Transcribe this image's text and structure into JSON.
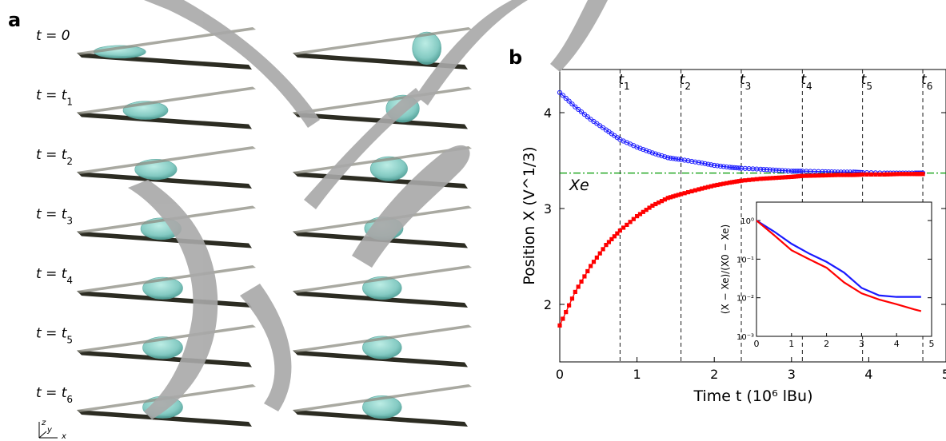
{
  "panel_a": {
    "label": "a",
    "rows": [
      {
        "t": "t = 0",
        "x_left": 0.25,
        "x_right": 0.78
      },
      {
        "t": "t = t1",
        "x_left": 0.4,
        "x_right": 0.64
      },
      {
        "t": "t = t2",
        "x_left": 0.46,
        "x_right": 0.56
      },
      {
        "t": "t = t3",
        "x_left": 0.49,
        "x_right": 0.53
      },
      {
        "t": "t = t4",
        "x_left": 0.5,
        "x_right": 0.52
      },
      {
        "t": "t = t5",
        "x_left": 0.5,
        "x_right": 0.52
      },
      {
        "t": "t = t6",
        "x_left": 0.5,
        "x_right": 0.52
      }
    ],
    "axes_glyph": {
      "z": "z",
      "y": "y",
      "x": "x"
    }
  },
  "panel_b": {
    "label": "b",
    "xe_label": "Xe"
  },
  "colors": {
    "blue": "#1a1aff",
    "red": "#ff0000",
    "green": "#009900",
    "droplet": "#7ec8c0",
    "plate": "#2c2c22",
    "watermark": "#a8a8a8"
  },
  "chart_data": [
    {
      "type": "line",
      "xlabel": "Time  t  (10⁶ lBu)",
      "ylabel": "Position X  (V^1/3)",
      "xlim": [
        0,
        5
      ],
      "ylim": [
        1.4,
        4.45
      ],
      "xticks": [
        0,
        1,
        2,
        3,
        4,
        5
      ],
      "xticklabels": [
        "0",
        "1",
        "2",
        "3",
        "4",
        "5"
      ],
      "yticks": [
        2,
        3,
        4
      ],
      "yticklabels": [
        "2",
        "3",
        "4"
      ],
      "x": [
        0,
        0.2,
        0.4,
        0.6,
        0.78,
        1.0,
        1.2,
        1.4,
        1.57,
        1.8,
        2.0,
        2.2,
        2.35,
        2.6,
        2.8,
        3.0,
        3.14,
        3.4,
        3.6,
        3.8,
        3.92,
        4.2,
        4.4,
        4.6,
        4.7
      ],
      "series": [
        {
          "name": "",
          "color": "blue",
          "marker": "circle",
          "values": [
            4.21,
            4.06,
            3.93,
            3.82,
            3.72,
            3.64,
            3.58,
            3.53,
            3.51,
            3.48,
            3.45,
            3.43,
            3.42,
            3.41,
            3.4,
            3.39,
            3.39,
            3.385,
            3.38,
            3.38,
            3.375,
            3.37,
            3.37,
            3.37,
            3.37
          ]
        },
        {
          "name": "",
          "color": "red",
          "marker": "square",
          "values": [
            1.78,
            2.13,
            2.4,
            2.62,
            2.77,
            2.92,
            3.03,
            3.11,
            3.15,
            3.2,
            3.24,
            3.27,
            3.29,
            3.31,
            3.32,
            3.33,
            3.34,
            3.345,
            3.35,
            3.35,
            3.355,
            3.355,
            3.36,
            3.36,
            3.36
          ]
        }
      ],
      "equilibrium_line": {
        "y": 3.37,
        "label": "Xe",
        "style": "dash-dot",
        "color": "green"
      },
      "time_markers": [
        {
          "label": "t1",
          "x": 0.78
        },
        {
          "label": "t2",
          "x": 1.57
        },
        {
          "label": "t3",
          "x": 2.35
        },
        {
          "label": "t4",
          "x": 3.14
        },
        {
          "label": "t5",
          "x": 3.92
        },
        {
          "label": "t6",
          "x": 4.7
        }
      ],
      "grid": false
    },
    {
      "type": "line",
      "scale": "log-y",
      "ylabel": "(X − Xe)/(X0 − Xe)",
      "xlim": [
        0,
        5
      ],
      "ylim": [
        0.001,
        3
      ],
      "xticks": [
        0,
        1,
        2,
        3,
        4,
        5
      ],
      "xticklabels": [
        "0",
        "1",
        "2",
        "3",
        "4",
        "5"
      ],
      "yticks": [
        0.001,
        0.01,
        0.1,
        1
      ],
      "yticklabels": [
        "10⁻³",
        "10⁻²",
        "10⁻¹",
        "10⁰"
      ],
      "x": [
        0,
        0.5,
        1.0,
        1.5,
        2.0,
        2.5,
        3.0,
        3.5,
        4.0,
        4.5,
        4.7
      ],
      "series": [
        {
          "name": "",
          "color": "blue",
          "values": [
            1.0,
            0.52,
            0.25,
            0.14,
            0.085,
            0.045,
            0.018,
            0.0115,
            0.0105,
            0.0105,
            0.0105
          ]
        },
        {
          "name": "",
          "color": "red",
          "values": [
            1.0,
            0.42,
            0.17,
            0.1,
            0.06,
            0.025,
            0.013,
            0.009,
            0.0068,
            0.005,
            0.0045
          ]
        }
      ]
    }
  ]
}
